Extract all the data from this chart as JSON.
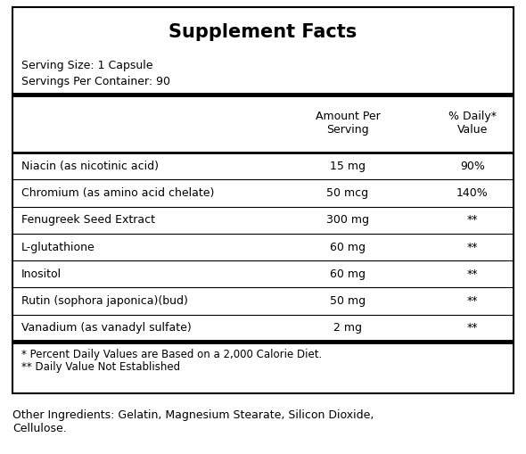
{
  "title": "Supplement Facts",
  "serving_size": "Serving Size: 1 Capsule",
  "servings_per_container": "Servings Per Container: 90",
  "col_headers": [
    "Amount Per\nServing",
    "% Daily*\nValue"
  ],
  "rows": [
    [
      "Niacin (as nicotinic acid)",
      "15 mg",
      "90%"
    ],
    [
      "Chromium (as amino acid chelate)",
      "50 mcg",
      "140%"
    ],
    [
      "Fenugreek Seed Extract",
      "300 mg",
      "**"
    ],
    [
      "L-glutathione",
      "60 mg",
      "**"
    ],
    [
      "Inositol",
      "60 mg",
      "**"
    ],
    [
      "Rutin (sophora japonica)(bud)",
      "50 mg",
      "**"
    ],
    [
      "Vanadium (as vanadyl sulfate)",
      "2 mg",
      "**"
    ]
  ],
  "footnotes": [
    "* Percent Daily Values are Based on a 2,000 Calorie Diet.",
    "** Daily Value Not Established"
  ],
  "other_ingredients": "Other Ingredients: Gelatin, Magnesium Stearate, Silicon Dioxide,\nCellulose.",
  "bg_color": "#ffffff",
  "text_color": "#000000",
  "fig_width": 5.9,
  "fig_height": 5.09,
  "dpi": 100
}
